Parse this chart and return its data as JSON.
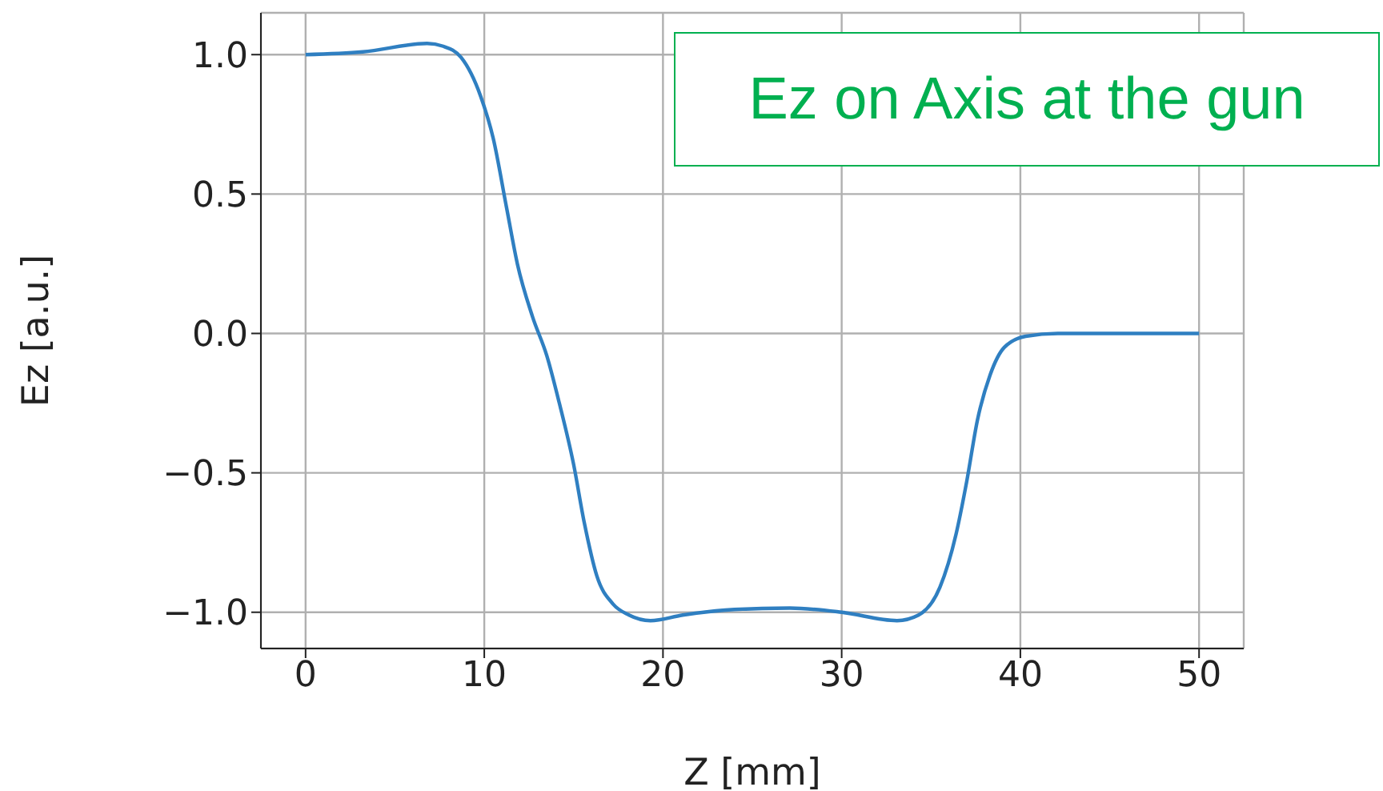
{
  "chart_data": {
    "type": "line",
    "xlabel": "Z [mm]",
    "ylabel": "Ez [a.u.]",
    "annotations": [
      "Ez on Axis at the gun"
    ],
    "x": [
      0,
      3.2,
      6.8,
      7.7,
      8.7,
      9.8,
      10.5,
      11.25,
      11.85,
      12.7,
      13.5,
      14.2,
      15.0,
      15.6,
      16.3,
      17.2,
      18.1,
      19.3,
      21.1,
      24.0,
      27.1,
      30,
      33.1,
      34.3,
      35.5,
      36.4,
      37.0,
      37.6,
      38.3,
      39.1,
      40.3,
      42.1,
      50
    ],
    "series": [
      {
        "color": "#2f7fc1",
        "values": [
          1.0,
          1.01,
          1.04,
          1.03,
          0.99,
          0.85,
          0.7,
          0.45,
          0.25,
          0.06,
          -0.08,
          -0.25,
          -0.47,
          -0.68,
          -0.87,
          -0.97,
          -1.01,
          -1.03,
          -1.01,
          -0.99,
          -0.985,
          -1.0,
          -1.03,
          -1.01,
          -0.91,
          -0.72,
          -0.53,
          -0.31,
          -0.15,
          -0.05,
          -0.01,
          0,
          0
        ]
      }
    ],
    "xlim": [
      -2.5,
      52.5
    ],
    "xticks": [
      0,
      10,
      20,
      30,
      40,
      50
    ],
    "ylim": [
      -1.13,
      1.15
    ],
    "yticks": [
      {
        "value": -1,
        "label": "−1.0"
      },
      {
        "value": -0.5,
        "label": "−0.5"
      },
      {
        "value": 0,
        "label": "0.0"
      },
      {
        "value": 0.5,
        "label": "0.5"
      },
      {
        "value": 1,
        "label": "1.0"
      }
    ],
    "grid": true,
    "legend": false,
    "marker": "none",
    "line_style": "solid"
  }
}
